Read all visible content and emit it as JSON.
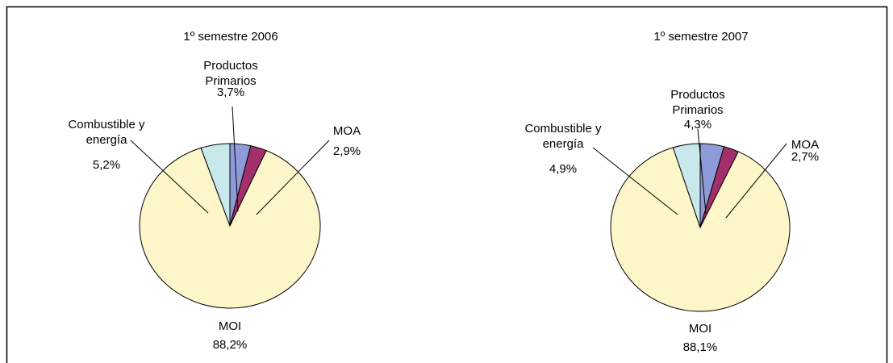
{
  "chart_data": [
    {
      "type": "pie",
      "title": "1º semestre 2006",
      "categories": [
        "Productos Primarios",
        "MOA",
        "MOI",
        "Combustible y energía"
      ],
      "values": [
        3.7,
        2.9,
        88.2,
        5.2
      ],
      "value_labels": [
        "3,7%",
        "2,9%",
        "88,2%",
        "5,2%"
      ],
      "colors": [
        "#8e9bd8",
        "#a3306b",
        "#fcf6c8",
        "#c8e8ec"
      ]
    },
    {
      "type": "pie",
      "title": "1º semestre 2007",
      "categories": [
        "Productos Primarios",
        "MOA",
        "MOI",
        "Combustible y energía"
      ],
      "values": [
        4.3,
        2.7,
        88.1,
        4.9
      ],
      "value_labels": [
        "4,3%",
        "2,7%",
        "88,1%",
        "4,9%"
      ],
      "colors": [
        "#8e9bd8",
        "#a3306b",
        "#fcf6c8",
        "#c8e8ec"
      ]
    }
  ]
}
